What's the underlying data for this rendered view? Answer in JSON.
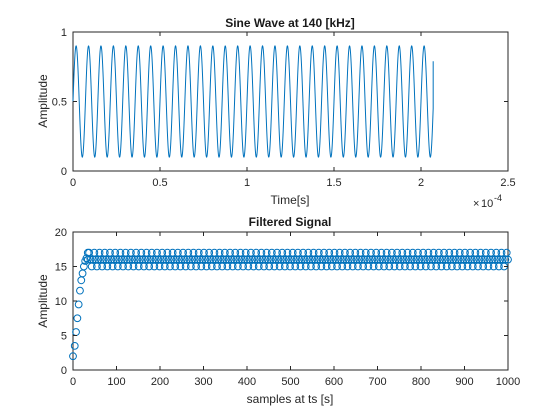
{
  "chart_data": [
    {
      "type": "line",
      "title": "Sine Wave at 140 [kHz]",
      "xlabel": "Time[s]",
      "ylabel": "Amplitude",
      "x_multiplier_label": "10",
      "x_multiplier_exponent": "-4",
      "xlim": [
        0,
        0.00025
      ],
      "ylim": [
        0,
        1
      ],
      "x_ticks": [
        0,
        5e-05,
        0.0001,
        0.00015,
        0.0002,
        0.00025
      ],
      "x_tick_labels": [
        "0",
        "0.5",
        "1",
        "1.5",
        "2",
        "2.5"
      ],
      "y_ticks": [
        0,
        0.5,
        1
      ],
      "y_tick_labels": [
        "0",
        "0.5",
        "1"
      ],
      "series": [
        {
          "frequency_hz": 140000,
          "x_start": 0,
          "x_end": 0.000207,
          "offset": 0.5,
          "amplitude": 0.4,
          "end_value": 0.79,
          "color": "#0072BD"
        }
      ],
      "grid": false
    },
    {
      "type": "scatter",
      "title": "Filtered Signal",
      "xlabel": "samples at ts [s]",
      "ylabel": "Amplitude",
      "xlim": [
        0,
        1000
      ],
      "ylim": [
        0,
        20
      ],
      "x_ticks": [
        0,
        100,
        200,
        300,
        400,
        500,
        600,
        700,
        800,
        900,
        1000
      ],
      "x_tick_labels": [
        "0",
        "100",
        "200",
        "300",
        "400",
        "500",
        "600",
        "700",
        "800",
        "900",
        "1000"
      ],
      "y_ticks": [
        0,
        5,
        10,
        15,
        20
      ],
      "y_tick_labels": [
        "0",
        "5",
        "10",
        "15",
        "20"
      ],
      "series": [
        {
          "marker": "circle",
          "color": "#0072BD",
          "ramp_x": [
            0,
            4,
            7,
            10,
            13,
            16,
            19,
            22,
            25,
            28,
            31,
            34
          ],
          "ramp_y": [
            2,
            3.5,
            5.5,
            7.5,
            9.5,
            11.5,
            13,
            14,
            15,
            15.8,
            16.2,
            17
          ],
          "steady_x_start": 34,
          "steady_x_end": 1000,
          "steady_x_step": 3,
          "steady_levels": [
            15,
            16,
            17
          ]
        }
      ],
      "grid": false
    }
  ]
}
